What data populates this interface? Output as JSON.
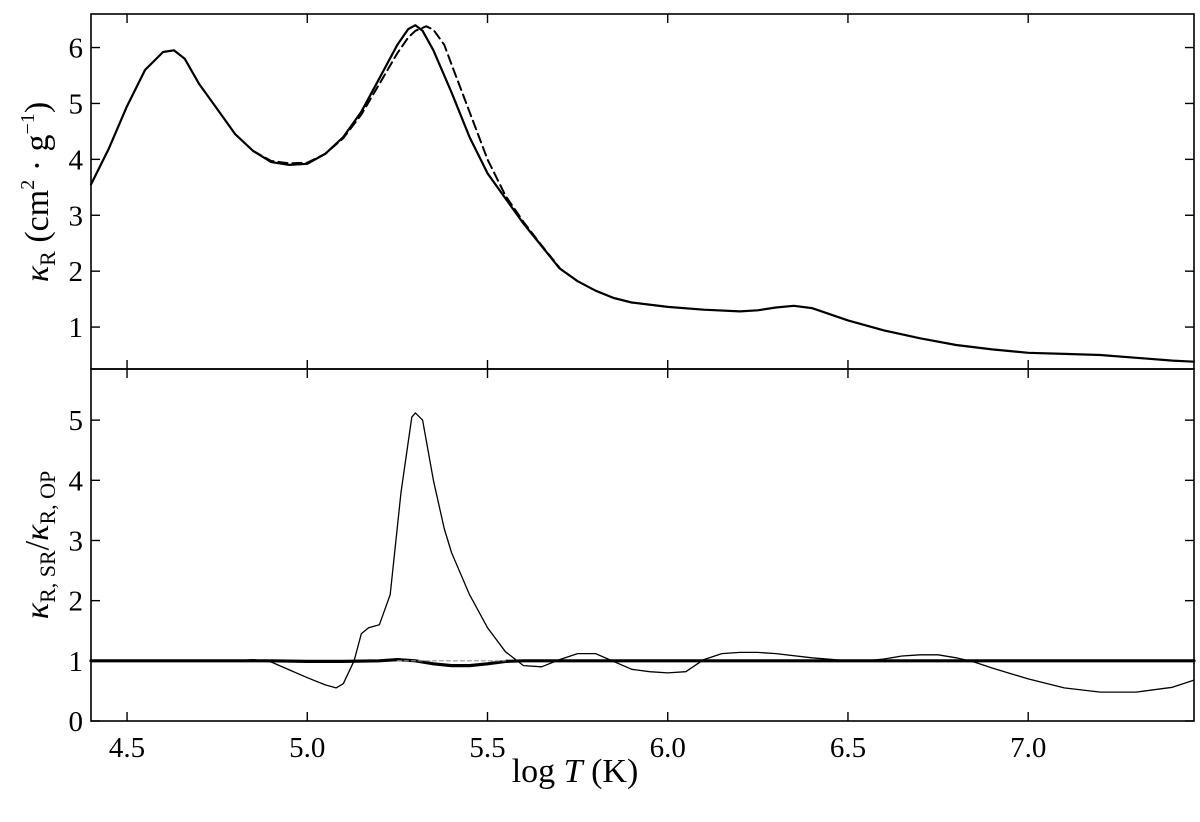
{
  "chart_data": [
    {
      "panel": "top",
      "type": "line",
      "ylabel": "κR (cm2 · g−1)",
      "xlim": [
        4.4,
        7.46
      ],
      "ylim": [
        0.25,
        6.6
      ],
      "yticks": [
        1,
        2,
        3,
        4,
        5,
        6
      ],
      "grid": false,
      "series": [
        {
          "style": "solid",
          "x": [
            4.4,
            4.45,
            4.5,
            4.55,
            4.6,
            4.63,
            4.66,
            4.7,
            4.75,
            4.8,
            4.85,
            4.9,
            4.95,
            5.0,
            5.05,
            5.1,
            5.15,
            5.2,
            5.25,
            5.28,
            5.3,
            5.32,
            5.35,
            5.4,
            5.45,
            5.5,
            5.55,
            5.6,
            5.65,
            5.7,
            5.75,
            5.8,
            5.85,
            5.9,
            6.0,
            6.1,
            6.2,
            6.25,
            6.3,
            6.35,
            6.4,
            6.5,
            6.6,
            6.7,
            6.8,
            6.9,
            7.0,
            7.1,
            7.2,
            7.3,
            7.4,
            7.46
          ],
          "y": [
            3.55,
            4.2,
            4.95,
            5.6,
            5.92,
            5.95,
            5.8,
            5.35,
            4.9,
            4.45,
            4.15,
            3.95,
            3.9,
            3.92,
            4.1,
            4.4,
            4.85,
            5.45,
            6.05,
            6.33,
            6.4,
            6.3,
            5.95,
            5.2,
            4.4,
            3.75,
            3.3,
            2.85,
            2.45,
            2.05,
            1.82,
            1.65,
            1.52,
            1.44,
            1.36,
            1.31,
            1.28,
            1.3,
            1.35,
            1.38,
            1.34,
            1.12,
            0.94,
            0.8,
            0.68,
            0.6,
            0.54,
            0.52,
            0.5,
            0.45,
            0.4,
            0.38
          ]
        },
        {
          "style": "dashed",
          "x": [
            4.85,
            4.9,
            4.95,
            5.0,
            5.05,
            5.1,
            5.15,
            5.2,
            5.25,
            5.28,
            5.3,
            5.33,
            5.35,
            5.38,
            5.4,
            5.45,
            5.5,
            5.55,
            5.6,
            5.65,
            5.7
          ],
          "y": [
            4.15,
            3.97,
            3.93,
            3.94,
            4.1,
            4.38,
            4.8,
            5.35,
            5.9,
            6.18,
            6.3,
            6.38,
            6.32,
            6.05,
            5.7,
            4.85,
            4.0,
            3.35,
            2.88,
            2.46,
            2.06
          ]
        }
      ]
    },
    {
      "panel": "bottom",
      "type": "line",
      "xlabel": "log T (K)",
      "ylabel": "κR, SR/κR, OP",
      "xlim": [
        4.4,
        7.46
      ],
      "ylim": [
        0,
        5.85
      ],
      "xticks": [
        "4.5",
        "5.0",
        "5.5",
        "6.0",
        "6.5",
        "7.0"
      ],
      "yticks": [
        0,
        1,
        2,
        3,
        4,
        5
      ],
      "grid": false,
      "series": [
        {
          "style": "thick",
          "x": [
            4.4,
            4.8,
            4.9,
            5.0,
            5.1,
            5.2,
            5.25,
            5.3,
            5.35,
            5.4,
            5.45,
            5.5,
            5.55,
            5.6,
            5.7,
            5.8,
            6.0,
            6.5,
            7.0,
            7.46
          ],
          "y": [
            1.0,
            1.0,
            1.0,
            0.99,
            0.99,
            1.0,
            1.02,
            1.0,
            0.95,
            0.92,
            0.92,
            0.95,
            0.99,
            1.0,
            1.0,
            1.0,
            1.0,
            1.0,
            1.0,
            1.0
          ]
        },
        {
          "style": "thin",
          "x": [
            4.4,
            4.8,
            4.85,
            4.9,
            4.95,
            5.0,
            5.05,
            5.08,
            5.1,
            5.13,
            5.15,
            5.17,
            5.2,
            5.23,
            5.26,
            5.29,
            5.3,
            5.32,
            5.35,
            5.38,
            5.4,
            5.45,
            5.5,
            5.55,
            5.6,
            5.65,
            5.7,
            5.75,
            5.8,
            5.9,
            5.95,
            6.0,
            6.05,
            6.1,
            6.15,
            6.2,
            6.25,
            6.3,
            6.4,
            6.5,
            6.55,
            6.6,
            6.65,
            6.7,
            6.75,
            6.8,
            6.85,
            6.9,
            7.0,
            7.1,
            7.2,
            7.3,
            7.4,
            7.46
          ],
          "y": [
            1.0,
            1.0,
            1.02,
            0.98,
            0.85,
            0.72,
            0.6,
            0.55,
            0.62,
            1.0,
            1.45,
            1.55,
            1.6,
            2.1,
            3.8,
            5.05,
            5.12,
            5.0,
            4.0,
            3.2,
            2.8,
            2.1,
            1.55,
            1.15,
            0.92,
            0.9,
            1.02,
            1.12,
            1.12,
            0.86,
            0.82,
            0.8,
            0.82,
            1.02,
            1.12,
            1.14,
            1.14,
            1.12,
            1.05,
            1.0,
            1.0,
            1.03,
            1.08,
            1.1,
            1.1,
            1.05,
            0.98,
            0.88,
            0.7,
            0.55,
            0.48,
            0.48,
            0.56,
            0.68
          ]
        },
        {
          "style": "dashed-gray",
          "x": [
            5.25,
            5.3,
            5.35,
            5.4,
            5.45,
            5.5,
            5.55
          ],
          "y": [
            1.0,
            1.0,
            1.0,
            1.0,
            1.0,
            1.0,
            1.0
          ]
        }
      ]
    }
  ]
}
